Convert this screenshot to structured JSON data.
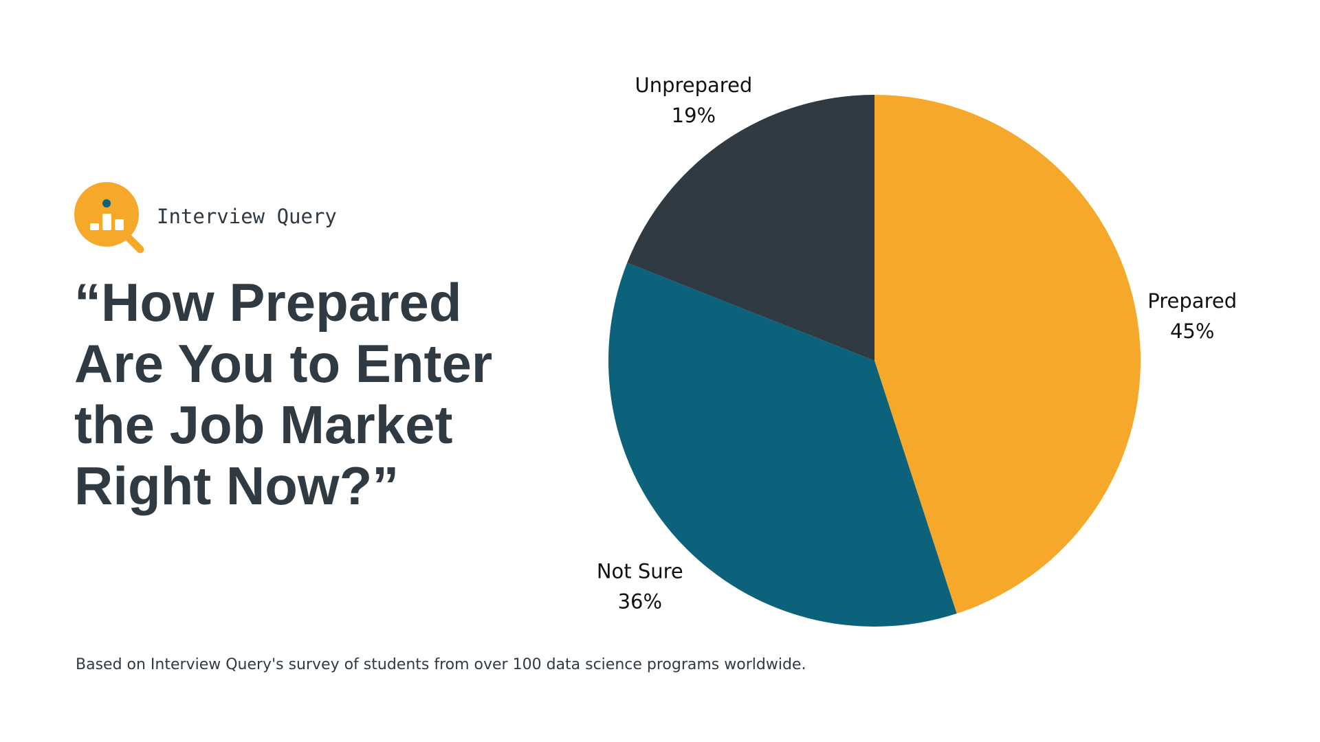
{
  "brand": {
    "name": "Interview Query",
    "logo_icon": "magnifier-chart-icon",
    "logo_color": "#f5a82a"
  },
  "headline": {
    "lines": [
      "“How Prepared",
      "Are You to Enter",
      "the Job Market",
      "Right Now?”"
    ]
  },
  "footnote": "Based on Interview Query's survey of students from over 100 data science programs worldwide.",
  "chart_data": {
    "type": "pie",
    "title": "“How Prepared Are You to Enter the Job Market Right Now?”",
    "unit": "%",
    "slices": [
      {
        "label": "Prepared",
        "value": 45,
        "display": "45%",
        "color": "#f5a82a"
      },
      {
        "label": "Not Sure",
        "value": 36,
        "display": "36%",
        "color": "#0c627b"
      },
      {
        "label": "Unprepared",
        "value": 19,
        "display": "19%",
        "color": "#2f3a42"
      }
    ],
    "start": "12 o'clock",
    "direction": "clockwise",
    "label_position": "outside"
  }
}
